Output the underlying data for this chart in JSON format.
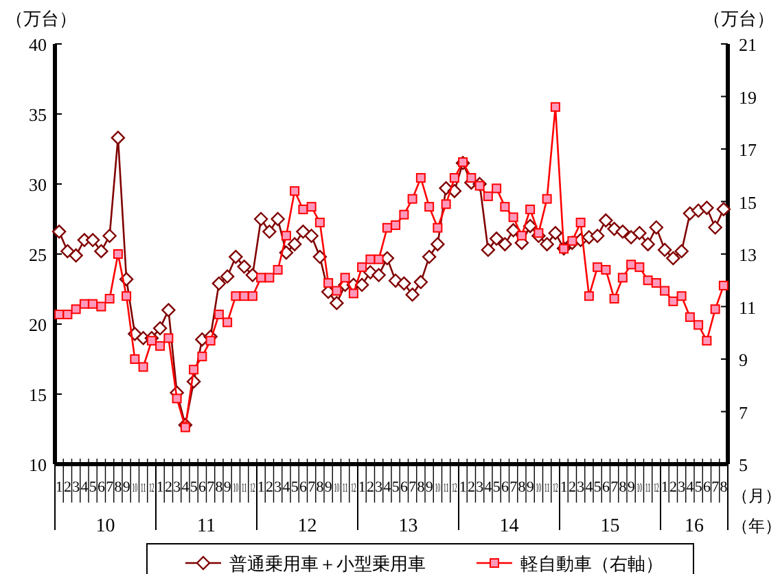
{
  "chart_data": {
    "type": "line",
    "ylabel": "（万台）",
    "y2label": "（万台）",
    "xlabel": "（月）",
    "categories": [
      "1",
      "2",
      "3",
      "4",
      "5",
      "6",
      "7",
      "8",
      "9",
      "10",
      "11",
      "12",
      "1",
      "2",
      "3",
      "4",
      "5",
      "6",
      "7",
      "8",
      "9",
      "10",
      "11",
      "12",
      "1",
      "2",
      "3",
      "4",
      "5",
      "6",
      "7",
      "8",
      "9",
      "10",
      "11",
      "12",
      "1",
      "2",
      "3",
      "4",
      "5",
      "6",
      "7",
      "8",
      "9",
      "10",
      "11",
      "12",
      "1",
      "2",
      "3",
      "4",
      "5",
      "6",
      "7",
      "8",
      "9",
      "10",
      "11",
      "12",
      "1",
      "2",
      "3",
      "4",
      "5",
      "6",
      "7",
      "8",
      "9",
      "10",
      "11",
      "12",
      "1",
      "2",
      "3",
      "4",
      "5",
      "6",
      "7",
      "8"
    ],
    "annotations": [
      "10",
      "11",
      "12",
      "13",
      "14",
      "15",
      "16",
      "（年）"
    ],
    "ylim": [
      10,
      40
    ],
    "yticks": [
      10,
      15,
      20,
      25,
      30,
      35,
      40
    ],
    "y2lim": [
      5,
      21
    ],
    "y2ticks": [
      5,
      7,
      9,
      11,
      13,
      15,
      17,
      19,
      21
    ],
    "grid": false,
    "legend": "bottom",
    "series": [
      {
        "name": "普通乗用車＋小型乗用車",
        "color": "#800000",
        "marker": "diamond",
        "values": [
          26.6,
          25.2,
          24.9,
          26.0,
          26.0,
          25.2,
          26.3,
          33.3,
          23.2,
          19.3,
          19.0,
          19.0,
          19.7,
          21.0,
          15.1,
          12.8,
          15.9,
          18.9,
          19.1,
          22.9,
          23.4,
          24.8,
          24.1,
          23.5,
          27.5,
          26.6,
          27.5,
          25.1,
          25.7,
          26.6,
          26.3,
          24.8,
          22.3,
          21.5,
          22.8,
          22.8,
          22.8,
          23.7,
          23.5,
          24.7,
          23.1,
          22.9,
          22.1,
          23.0,
          24.8,
          25.7,
          29.7,
          29.5,
          31.5,
          30.1,
          30.0,
          25.3,
          26.1,
          25.7,
          26.7,
          25.8,
          27.0,
          26.3,
          25.7,
          26.5,
          25.4,
          25.8,
          26.0,
          26.2,
          26.3,
          27.4,
          26.8,
          26.6,
          26.2,
          26.5,
          25.7,
          26.9,
          25.3,
          24.7,
          25.2,
          27.9,
          28.1,
          28.3,
          26.9,
          28.2
        ]
      },
      {
        "name": "軽自動車（右軸）",
        "color": "#ff0000",
        "marker": "square",
        "axis": "y2",
        "values": [
          10.7,
          10.7,
          10.9,
          11.1,
          11.1,
          11.0,
          11.3,
          13.0,
          11.4,
          9.0,
          8.7,
          9.7,
          9.5,
          9.8,
          7.5,
          6.4,
          8.6,
          9.1,
          9.7,
          10.7,
          10.4,
          11.4,
          11.4,
          11.4,
          12.1,
          12.1,
          12.4,
          13.7,
          15.4,
          14.7,
          14.8,
          14.2,
          11.9,
          11.6,
          12.1,
          11.5,
          12.5,
          12.8,
          12.8,
          14.0,
          14.1,
          14.5,
          15.1,
          15.9,
          14.8,
          14.0,
          14.9,
          15.9,
          16.5,
          15.9,
          15.6,
          15.2,
          15.5,
          14.8,
          14.4,
          13.7,
          14.7,
          13.8,
          15.1,
          18.6,
          13.2,
          13.5,
          14.2,
          11.4,
          12.5,
          12.4,
          11.3,
          12.1,
          12.6,
          12.5,
          12.0,
          11.9,
          11.6,
          11.2,
          11.4,
          10.6,
          10.3,
          9.7,
          10.9,
          11.8
        ]
      }
    ]
  }
}
